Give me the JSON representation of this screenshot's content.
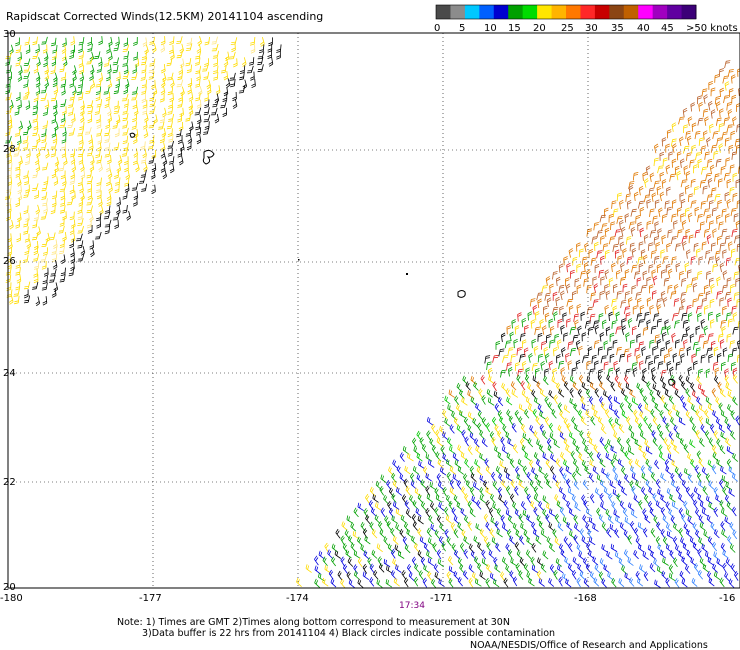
{
  "title": "Rapidscat Corrected Winds(12.5KM) 20141104 ascending",
  "colorbar": {
    "colors": [
      "#4a4a4a",
      "#8c8c8c",
      "#00c8ff",
      "#0060ff",
      "#0000d0",
      "#00a000",
      "#00dc00",
      "#ffe600",
      "#ffb400",
      "#ff7800",
      "#ff2828",
      "#c80000",
      "#8b4513",
      "#c06000",
      "#ff00ff",
      "#a000c0",
      "#6000a0",
      "#3c0078"
    ],
    "labels": [
      "0",
      "5",
      "10",
      "15",
      "20",
      "25",
      "30",
      "35",
      "40",
      "45",
      ">50 knots"
    ]
  },
  "axes": {
    "lon_labels": [
      "-180",
      "-177",
      "-174",
      "-171",
      "-168",
      "-16"
    ],
    "lat_labels": [
      "30",
      "28",
      "26",
      "24",
      "22",
      "20"
    ]
  },
  "time_label": "17:34",
  "note": {
    "line1": "Note: 1) Times are GMT 2)Times along bottom correspond to measurement at 30N",
    "line2": "3)Data buffer is 22 hrs from 20141104 4) Black circles indicate possible contamination"
  },
  "credit": "NOAA/NESDIS/Office of Research and Applications"
}
